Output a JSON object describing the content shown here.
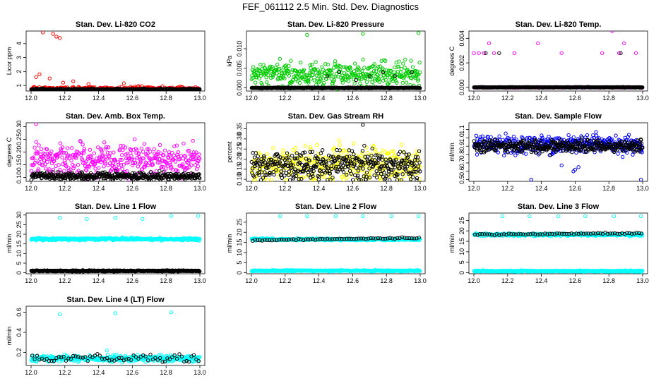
{
  "figure_title": "FEF_061112  2.5 Min. Std. Dev. Diagnostics",
  "colors": {
    "red": "#ff0000",
    "green": "#00cc00",
    "magenta": "#ff00ff",
    "yellow": "#ffff00",
    "blue": "#0000ff",
    "cyan": "#00ffff",
    "black": "#000000"
  },
  "chart_data": [
    {
      "type": "scatter",
      "title": "Stan. Dev. Li-820 CO2",
      "ylabel": "Licor ppm",
      "xlim": [
        12.0,
        13.0
      ],
      "ylim": [
        0.6,
        4.9
      ],
      "xticks": [
        "12.0",
        "12.2",
        "12.4",
        "12.6",
        "12.8",
        "13.0"
      ],
      "yticks": [
        "1",
        "2",
        "3",
        "4"
      ],
      "series": [
        {
          "color": "red",
          "baseline": 0.75,
          "spread": 0.12,
          "upper_outliers": [
            [
              12.03,
              1.6
            ],
            [
              12.05,
              1.8
            ],
            [
              12.07,
              4.8
            ],
            [
              12.11,
              1.5
            ],
            [
              12.13,
              4.7
            ],
            [
              12.15,
              4.5
            ],
            [
              12.17,
              4.4
            ],
            [
              12.19,
              1.2
            ],
            [
              12.25,
              1.3
            ],
            [
              12.34,
              1.1
            ],
            [
              12.55,
              1.15
            ]
          ]
        },
        {
          "color": "black",
          "baseline": 0.7,
          "spread": 0.06
        }
      ]
    },
    {
      "type": "scatter",
      "title": "Stan. Dev. Li-820 Pressure",
      "ylabel": "kPa",
      "xlim": [
        12.0,
        13.0
      ],
      "ylim": [
        -0.0008,
        0.0145
      ],
      "xticks": [
        "12.0",
        "12.2",
        "12.4",
        "12.6",
        "12.8",
        "13.0"
      ],
      "yticks": [
        "0.000",
        "0.005",
        "0.010"
      ],
      "series": [
        {
          "color": "green",
          "baseline": 0.0035,
          "spread": 0.0025,
          "upper_outliers": [
            [
              12.33,
              0.0135
            ],
            [
              12.66,
              0.0138
            ],
            [
              12.99,
              0.014
            ]
          ]
        },
        {
          "color": "black",
          "baseline": 0.0,
          "spread": 0.0001,
          "upper_outliers": [
            [
              12.45,
              0.003
            ],
            [
              12.52,
              0.004
            ],
            [
              12.62,
              0.002
            ],
            [
              12.7,
              0.003
            ],
            [
              12.78,
              0.004
            ],
            [
              12.85,
              0.003
            ],
            [
              12.95,
              0.004
            ]
          ]
        }
      ]
    },
    {
      "type": "scatter",
      "title": "Stan. Dev. Li-820 Temp.",
      "ylabel": "degrees C",
      "xlim": [
        12.0,
        13.0
      ],
      "ylim": [
        -0.0003,
        0.0046
      ],
      "xticks": [
        "12.0",
        "12.2",
        "12.4",
        "12.6",
        "12.8",
        "13.0"
      ],
      "yticks": [
        "0.000",
        "0.002",
        "0.004"
      ],
      "series": [
        {
          "color": "magenta",
          "baseline": 0.0,
          "spread": 2e-05,
          "upper_outliers": [
            [
              12.0,
              0.0028
            ],
            [
              12.03,
              0.0028
            ],
            [
              12.06,
              0.0028
            ],
            [
              12.09,
              0.0036
            ],
            [
              12.12,
              0.0028
            ],
            [
              12.24,
              0.0028
            ],
            [
              12.38,
              0.0036
            ],
            [
              12.52,
              0.0028
            ],
            [
              12.76,
              0.0028
            ],
            [
              12.82,
              0.0046
            ],
            [
              12.86,
              0.0028
            ],
            [
              12.89,
              0.0036
            ],
            [
              12.96,
              0.0028
            ]
          ]
        },
        {
          "color": "black",
          "baseline": 0.0,
          "spread": 2e-05,
          "upper_outliers": [
            [
              12.07,
              0.0028
            ],
            [
              12.15,
              0.0028
            ],
            [
              12.87,
              0.0028
            ]
          ]
        }
      ]
    },
    {
      "type": "scatter",
      "title": "Stan. Dev. Amb. Box Temp.",
      "ylabel": "degrees C",
      "xlim": [
        12.0,
        13.0
      ],
      "ylim": [
        0.085,
        0.315
      ],
      "xticks": [
        "12.0",
        "12.2",
        "12.4",
        "12.6",
        "12.8",
        "13.0"
      ],
      "yticks": [
        "0.10",
        "0.15",
        "0.20",
        "0.25",
        "0.30"
      ],
      "series": [
        {
          "color": "magenta",
          "baseline": 0.17,
          "spread": 0.05,
          "upper_outliers": [
            [
              12.03,
              0.31
            ]
          ]
        },
        {
          "color": "black",
          "baseline": 0.105,
          "spread": 0.012
        }
      ]
    },
    {
      "type": "scatter",
      "title": "Stan. Dev. Gas Stream RH",
      "ylabel": "percent",
      "xlim": [
        12.0,
        13.0
      ],
      "ylim": [
        0.09,
        0.38
      ],
      "xticks": [
        "12.0",
        "12.2",
        "12.4",
        "12.6",
        "12.8",
        "13.0"
      ],
      "yticks": [
        "0.10",
        "0.15",
        "0.20",
        "0.25",
        "0.30",
        "0.35"
      ],
      "series": [
        {
          "color": "yellow",
          "baseline": 0.17,
          "spread": 0.07
        },
        {
          "color": "black",
          "baseline": 0.17,
          "spread": 0.06,
          "upper_outliers": [
            [
              12.66,
              0.37
            ]
          ]
        }
      ]
    },
    {
      "type": "scatter",
      "title": "Stan. Dev. Sample Flow",
      "ylabel": "ml/min",
      "xlim": [
        12.0,
        13.0
      ],
      "ylim": [
        0.48,
        1.18
      ],
      "xticks": [
        "12.0",
        "12.2",
        "12.4",
        "12.6",
        "12.8",
        "13.0"
      ],
      "yticks": [
        "0.5",
        "0.6",
        "0.7",
        "0.8",
        "0.9",
        "1.0",
        "1.1"
      ],
      "series": [
        {
          "color": "blue",
          "baseline": 0.92,
          "spread": 0.09,
          "lower_outliers": [
            [
              12.34,
              0.5
            ],
            [
              12.59,
              0.6
            ],
            [
              12.6,
              0.62
            ],
            [
              12.62,
              0.65
            ],
            [
              12.52,
              0.67
            ],
            [
              12.99,
              0.5
            ]
          ]
        },
        {
          "color": "black",
          "baseline": 0.9,
          "spread": 0.06
        }
      ]
    },
    {
      "type": "scatter",
      "title": "Stan. Dev. Line 1 Flow",
      "ylabel": "ml/min",
      "xlim": [
        12.0,
        13.0
      ],
      "ylim": [
        -0.5,
        31
      ],
      "xticks": [
        "12.0",
        "12.2",
        "12.4",
        "12.6",
        "12.8",
        "13.0"
      ],
      "yticks": [
        "0",
        "5",
        "10",
        "15",
        "20",
        "25",
        "30"
      ],
      "series": [
        {
          "color": "cyan",
          "baseline": 17.5,
          "spread": 0.5,
          "upper_outliers": [
            [
              12.17,
              28.5
            ],
            [
              12.33,
              28.0
            ],
            [
              12.5,
              28.5
            ],
            [
              12.66,
              28.0
            ],
            [
              12.83,
              29.5
            ],
            [
              12.99,
              29.5
            ]
          ]
        },
        {
          "color": "black",
          "baseline": 1.0,
          "spread": 0.25
        }
      ]
    },
    {
      "type": "scatter",
      "title": "Stan. Dev. Line 2 Flow",
      "ylabel": "ml/min",
      "xlim": [
        12.0,
        13.0
      ],
      "ylim": [
        -0.5,
        29.5
      ],
      "xticks": [
        "12.0",
        "12.2",
        "12.4",
        "12.6",
        "12.8",
        "13.0"
      ],
      "yticks": [
        "0",
        "5",
        "10",
        "15",
        "20",
        "25"
      ],
      "series": [
        {
          "color": "cyan",
          "baseline": 16.5,
          "spread": 0.4,
          "upper_outliers": [
            [
              12.17,
              28.0
            ],
            [
              12.33,
              28.0
            ],
            [
              12.5,
              28.0
            ],
            [
              12.66,
              28.0
            ],
            [
              12.83,
              28.0
            ],
            [
              12.99,
              28.0
            ]
          ]
        },
        {
          "color": "cyan",
          "baseline": 1.0,
          "spread": 0.25
        },
        {
          "color": "black",
          "baseline": 16.0,
          "trend_end": 17.3,
          "spread": 0.3,
          "sparse": true
        }
      ]
    },
    {
      "type": "scatter",
      "title": "Stan. Dev. Line 3 Flow",
      "ylabel": "ml/min",
      "xlim": [
        12.0,
        13.0
      ],
      "ylim": [
        -0.5,
        28.5
      ],
      "xticks": [
        "12.0",
        "12.2",
        "12.4",
        "12.6",
        "12.8",
        "13.0"
      ],
      "yticks": [
        "0",
        "5",
        "10",
        "15",
        "20",
        "25"
      ],
      "series": [
        {
          "color": "cyan",
          "baseline": 18.2,
          "spread": 0.5,
          "upper_outliers": [
            [
              12.17,
              27.0
            ],
            [
              12.33,
              27.0
            ],
            [
              12.5,
              27.0
            ],
            [
              12.66,
              27.0
            ],
            [
              12.83,
              27.0
            ],
            [
              12.99,
              27.0
            ]
          ]
        },
        {
          "color": "cyan",
          "baseline": 0.8,
          "spread": 0.25
        },
        {
          "color": "black",
          "baseline": 18.2,
          "trend_end": 18.9,
          "spread": 0.3,
          "sparse": true
        }
      ]
    },
    {
      "type": "scatter",
      "title": "Stan. Dev. Line 4 (LT) Flow",
      "ylabel": "ml/min",
      "xlim": [
        12.0,
        13.0
      ],
      "ylim": [
        0.07,
        0.66
      ],
      "xticks": [
        "12.0",
        "12.2",
        "12.4",
        "12.6",
        "12.8",
        "13.0"
      ],
      "yticks": [
        "0.2",
        "0.4",
        "0.6"
      ],
      "series": [
        {
          "color": "cyan",
          "baseline": 0.14,
          "spread": 0.025,
          "upper_outliers": [
            [
              12.17,
              0.58
            ],
            [
              12.5,
              0.59
            ],
            [
              12.83,
              0.6
            ],
            [
              12.45,
              0.22
            ]
          ]
        },
        {
          "color": "black",
          "baseline": 0.14,
          "spread": 0.03,
          "sparse": true
        }
      ]
    }
  ]
}
